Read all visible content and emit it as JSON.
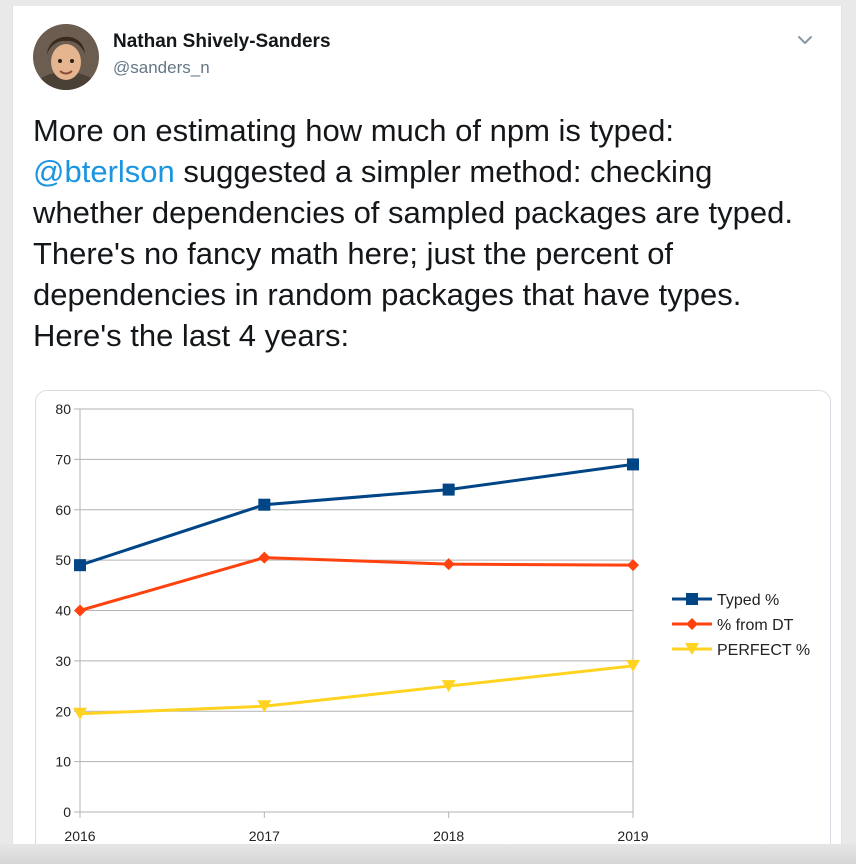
{
  "tweet": {
    "author": {
      "display_name": "Nathan Shively-Sanders",
      "handle": "@sanders_n"
    },
    "text": {
      "line1": "More on estimating how much of npm is typed:",
      "mention": "@bterlson",
      "line2_rest": " suggested a simpler method: checking",
      "line3": "whether dependencies of sampled packages are typed.",
      "line4": "There's no fancy math here; just the percent of",
      "line5": "dependencies in random packages that have types.",
      "line6": "Here's the last 4 years:"
    },
    "colors": {
      "mention": "#1b95e0",
      "text": "#14171a",
      "handle": "#657786"
    },
    "icons": {
      "menu": "chevron-down-icon",
      "avatar": "avatar-photo"
    }
  },
  "chart_data": {
    "type": "line",
    "categories": [
      "2016",
      "2017",
      "2018",
      "2019"
    ],
    "ylim": [
      0,
      80
    ],
    "yticks": [
      "0",
      "10",
      "20",
      "30",
      "40",
      "50",
      "60",
      "70",
      "80"
    ],
    "grid": true,
    "legend_position": "right",
    "series": [
      {
        "name": "Typed %",
        "values": [
          49,
          61,
          64,
          69
        ],
        "color": "#004586",
        "marker": "square"
      },
      {
        "name": "% from DT",
        "values": [
          40,
          50.5,
          49.2,
          49
        ],
        "color": "#ff420e",
        "marker": "diamond"
      },
      {
        "name": "PERFECT %",
        "values": [
          19.5,
          21,
          25,
          29
        ],
        "color": "#ffd320",
        "marker": "triangle-down"
      }
    ]
  }
}
